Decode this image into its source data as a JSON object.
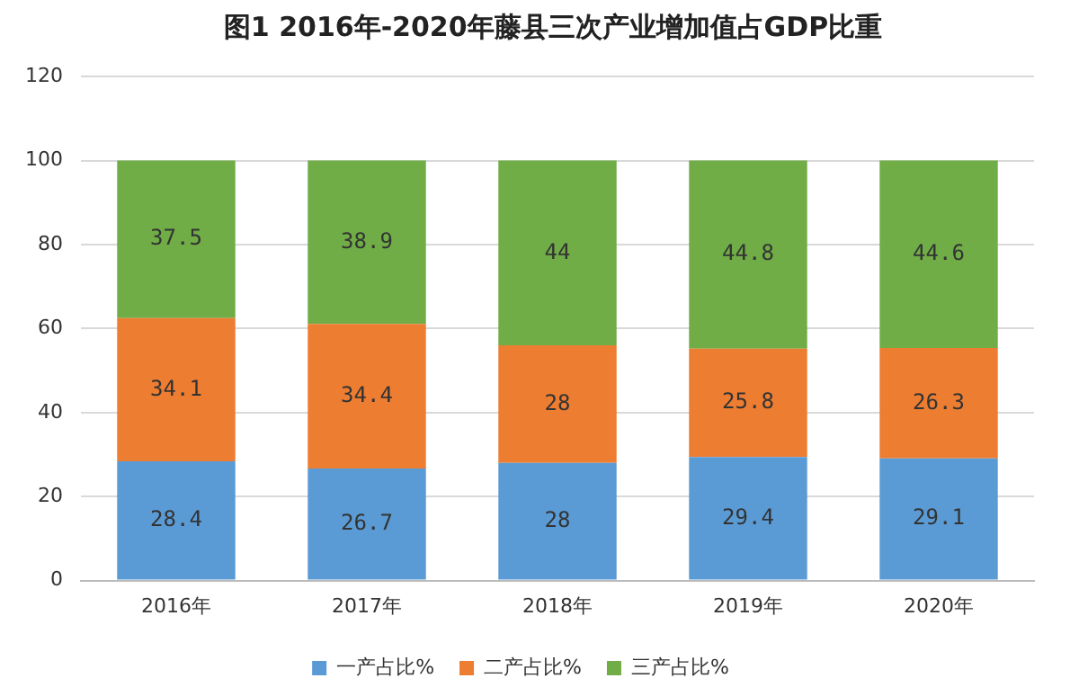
{
  "chart_data": {
    "type": "bar",
    "title": "图1 2016年-2020年藤县三次产业增加值占GDP比重",
    "categories": [
      "2016年",
      "2017年",
      "2018年",
      "2019年",
      "2020年"
    ],
    "stacked": true,
    "series": [
      {
        "name": "一产占比%",
        "color": "#5b9bd5",
        "values": [
          28.4,
          26.7,
          28,
          29.4,
          29.1
        ]
      },
      {
        "name": "二产占比%",
        "color": "#ed7d31",
        "values": [
          34.1,
          34.4,
          28,
          25.8,
          26.3
        ]
      },
      {
        "name": "三产占比%",
        "color": "#70ad47",
        "values": [
          37.5,
          38.9,
          44,
          44.8,
          44.6
        ]
      }
    ],
    "ylim": [
      0,
      120
    ],
    "yticks": [
      0,
      20,
      40,
      60,
      80,
      100,
      120
    ],
    "grid": "y",
    "legend": "bottom",
    "data_labels": true
  }
}
